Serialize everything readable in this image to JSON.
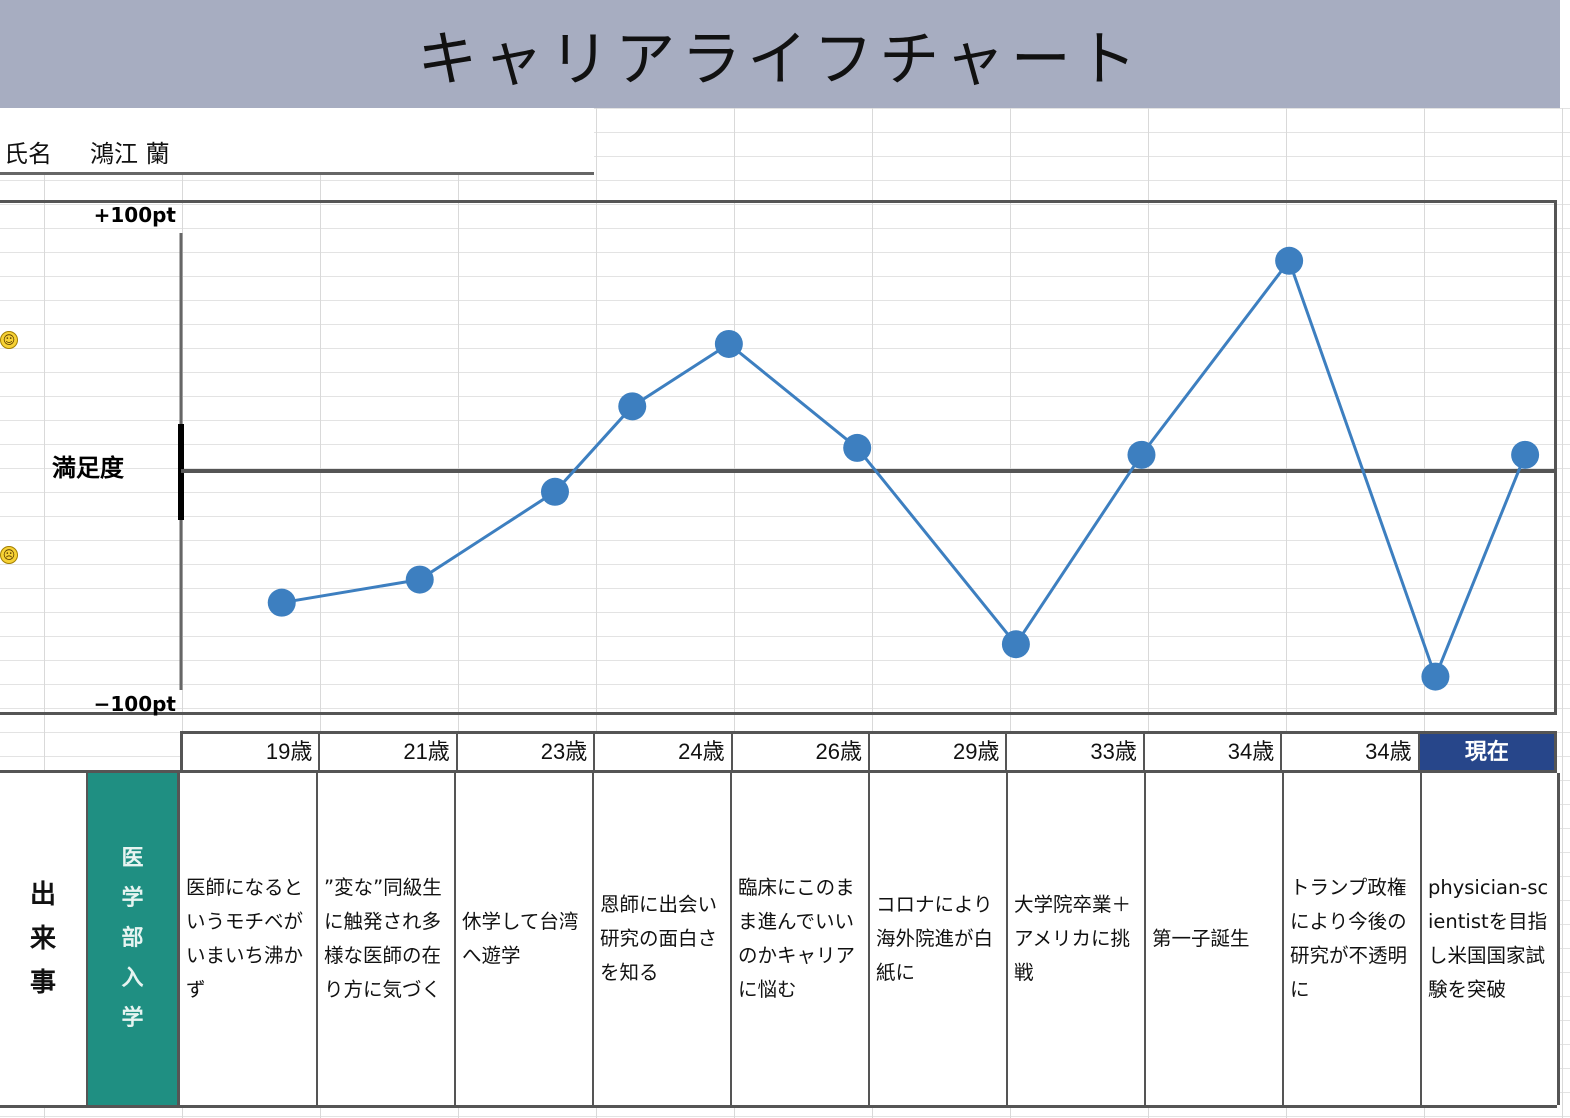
{
  "title": "キャリアライフチャート",
  "profile": {
    "name_label": "氏名",
    "name_value": "鴻江 蘭"
  },
  "chart_data": {
    "type": "line",
    "ylabel": "満足度",
    "ylim": [
      -100,
      100
    ],
    "y_top_label": "+100pt",
    "y_bottom_label": "−100pt",
    "ages": [
      "19歳",
      "21歳",
      "23歳",
      "24歳",
      "26歳",
      "29歳",
      "33歳",
      "34歳",
      "34歳",
      "現在"
    ],
    "points": [
      {
        "x": 0.73,
        "y": -57
      },
      {
        "x": 1.73,
        "y": -47
      },
      {
        "x": 2.71,
        "y": -9
      },
      {
        "x": 3.27,
        "y": 28
      },
      {
        "x": 3.97,
        "y": 55
      },
      {
        "x": 4.9,
        "y": 10
      },
      {
        "x": 6.05,
        "y": -75
      },
      {
        "x": 6.96,
        "y": 7
      },
      {
        "x": 8.03,
        "y": 91
      },
      {
        "x": 9.09,
        "y": -89
      },
      {
        "x": 9.74,
        "y": 7
      }
    ],
    "line_color": "#3d7fc0"
  },
  "icons": {
    "positive": "smile-icon",
    "negative": "frown-icon"
  },
  "events": {
    "label_chars": [
      "出",
      "来",
      "事"
    ],
    "milestone_chars": [
      "医",
      "学",
      "部",
      "入",
      "学"
    ],
    "milestone_color": "#1f8f82",
    "items": [
      "医師になるというモチベがいまいち沸かず",
      "”変な”同級生に触発され多様な医師の在り方に気づく",
      "休学して台湾へ遊学",
      "恩師に出会い研究の面白さを知る",
      "臨床にこのまま進んでいいのかキャリアに悩む",
      "コロナにより海外院進が白紙に",
      "大学院卒業＋アメリカに挑戦",
      "第一子誕生",
      "トランプ政権により今後の研究が不透明に",
      "physician-scientistを目指し米国国家試験を突破"
    ]
  }
}
